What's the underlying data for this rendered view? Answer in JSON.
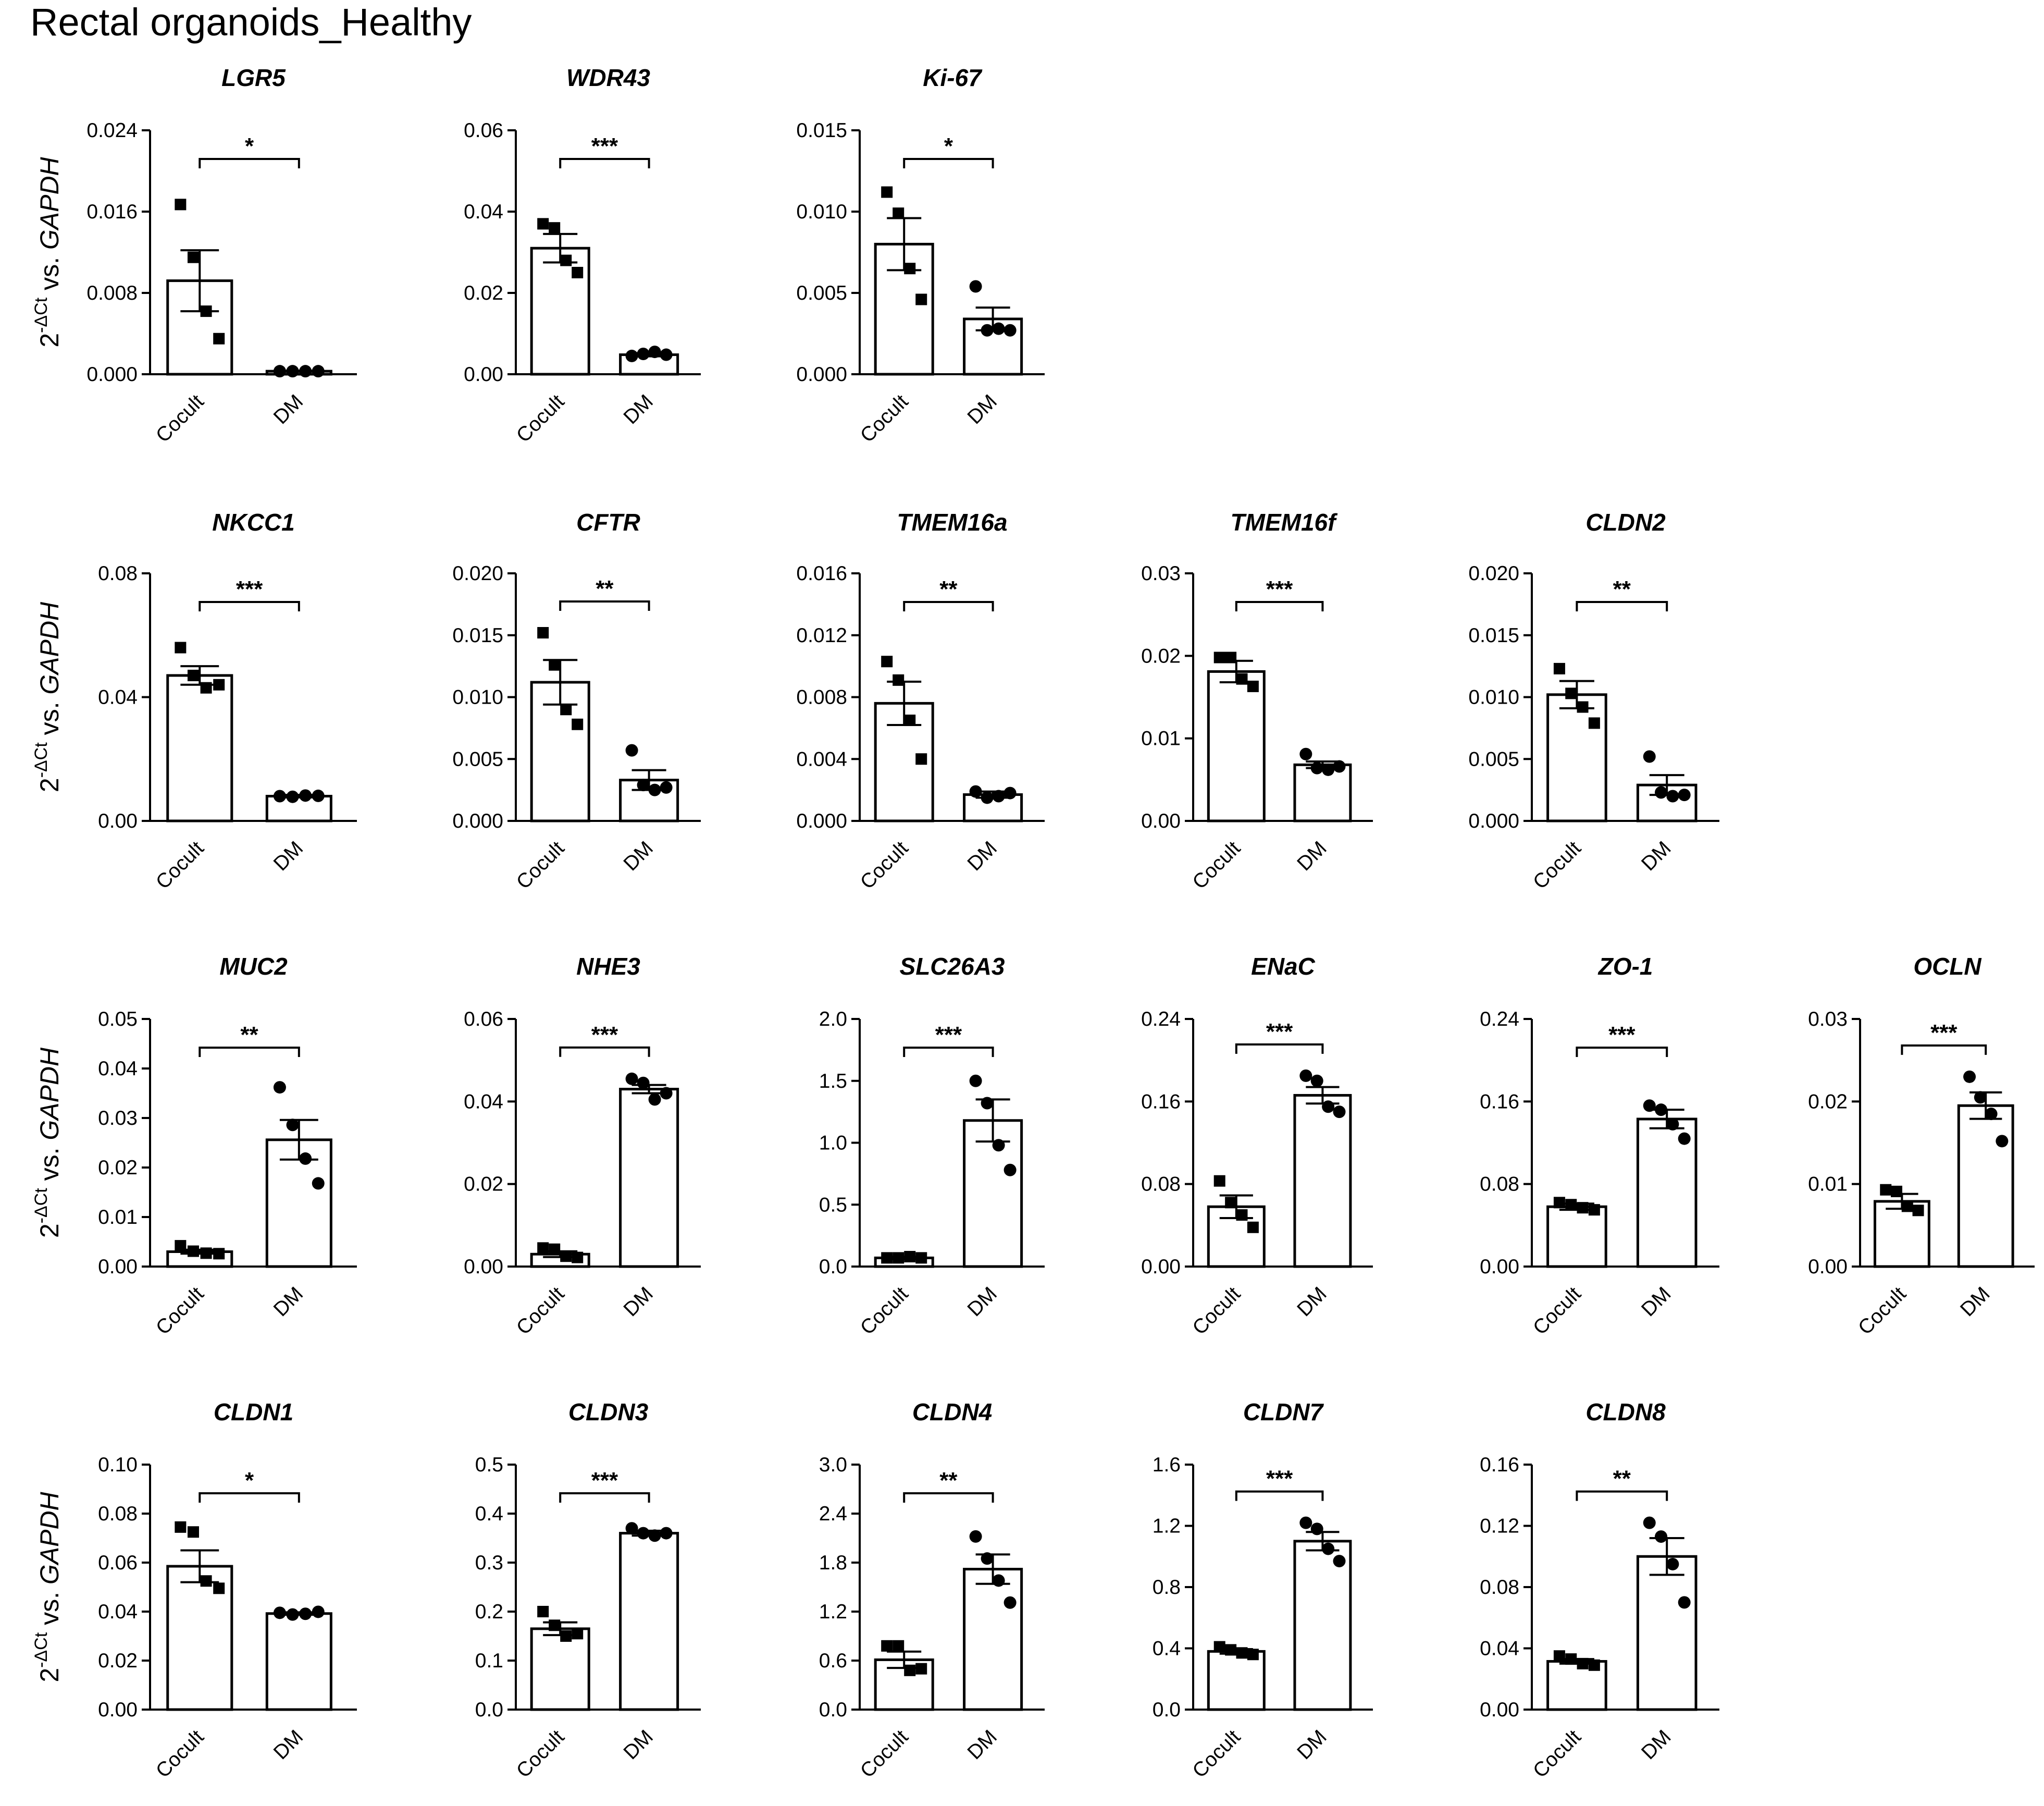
{
  "title": "Rectal organoids_Healthy",
  "y_axis_label": {
    "prefix": "2",
    "superscript": "-ΔCt",
    "middle": " vs. ",
    "gene": "GAPDH"
  },
  "colors": {
    "bar_fill": "#ffffff",
    "stroke": "#000000"
  },
  "chart_data": [
    {
      "type": "bar",
      "title": "LGR5",
      "categories": [
        "Cocult",
        "DM"
      ],
      "yticks": [
        "0.000",
        "0.008",
        "0.016",
        "0.024"
      ],
      "ylim": [
        0,
        0.024
      ],
      "significance": "*",
      "series": [
        {
          "values": [
            0.0092,
            0.0003
          ],
          "sem": [
            0.003,
            5e-05
          ],
          "points": [
            [
              0.0167,
              0.0115,
              0.0062,
              0.0035
            ],
            [
              0.0003,
              0.0003,
              0.0003,
              0.0003
            ]
          ]
        }
      ]
    },
    {
      "type": "bar",
      "title": "WDR43",
      "categories": [
        "Cocult",
        "DM"
      ],
      "yticks": [
        "0.00",
        "0.02",
        "0.04",
        "0.06"
      ],
      "ylim": [
        0,
        0.06
      ],
      "significance": "***",
      "series": [
        {
          "values": [
            0.031,
            0.0048
          ],
          "sem": [
            0.0035,
            0.0004
          ],
          "points": [
            [
              0.037,
              0.036,
              0.028,
              0.025
            ],
            [
              0.0045,
              0.005,
              0.0055,
              0.0048
            ]
          ]
        }
      ]
    },
    {
      "type": "bar",
      "title": "Ki-67",
      "categories": [
        "Cocult",
        "DM"
      ],
      "yticks": [
        "0.000",
        "0.005",
        "0.010",
        "0.015"
      ],
      "ylim": [
        0,
        0.015
      ],
      "significance": "*",
      "series": [
        {
          "values": [
            0.008,
            0.0034
          ],
          "sem": [
            0.0016,
            0.0007
          ],
          "points": [
            [
              0.0112,
              0.0099,
              0.0065,
              0.0046
            ],
            [
              0.0054,
              0.0027,
              0.0028,
              0.0027
            ]
          ]
        }
      ]
    },
    {
      "type": "bar",
      "title": "NKCC1",
      "categories": [
        "Cocult",
        "DM"
      ],
      "yticks": [
        "0.00",
        "0.04",
        "0.08"
      ],
      "ylim": [
        0,
        0.08
      ],
      "significance": "***",
      "series": [
        {
          "values": [
            0.047,
            0.008
          ],
          "sem": [
            0.003,
            0.0004
          ],
          "points": [
            [
              0.056,
              0.047,
              0.043,
              0.044
            ],
            [
              0.008,
              0.0078,
              0.0082,
              0.0081
            ]
          ]
        }
      ]
    },
    {
      "type": "bar",
      "title": "CFTR",
      "categories": [
        "Cocult",
        "DM"
      ],
      "yticks": [
        "0.000",
        "0.005",
        "0.010",
        "0.015",
        "0.020"
      ],
      "ylim": [
        0,
        0.02
      ],
      "significance": "**",
      "series": [
        {
          "values": [
            0.0112,
            0.0033
          ],
          "sem": [
            0.0018,
            0.0008
          ],
          "points": [
            [
              0.0152,
              0.0126,
              0.009,
              0.0078
            ],
            [
              0.0057,
              0.0029,
              0.0025,
              0.0027
            ]
          ]
        }
      ]
    },
    {
      "type": "bar",
      "title": "TMEM16a",
      "categories": [
        "Cocult",
        "DM"
      ],
      "yticks": [
        "0.000",
        "0.004",
        "0.008",
        "0.012",
        "0.016"
      ],
      "ylim": [
        0,
        0.016
      ],
      "significance": "**",
      "series": [
        {
          "values": [
            0.0076,
            0.0017
          ],
          "sem": [
            0.0014,
            0.0002
          ],
          "points": [
            [
              0.0103,
              0.0091,
              0.0065,
              0.004
            ],
            [
              0.0019,
              0.0015,
              0.0016,
              0.0018
            ]
          ]
        }
      ]
    },
    {
      "type": "bar",
      "title": "TMEM16f",
      "categories": [
        "Cocult",
        "DM"
      ],
      "yticks": [
        "0.00",
        "0.01",
        "0.02",
        "0.03"
      ],
      "ylim": [
        0,
        0.03
      ],
      "significance": "***",
      "series": [
        {
          "values": [
            0.0181,
            0.0068
          ],
          "sem": [
            0.0013,
            0.0004
          ],
          "points": [
            [
              0.0198,
              0.0198,
              0.0172,
              0.0163
            ],
            [
              0.0081,
              0.0064,
              0.0062,
              0.0066
            ]
          ]
        }
      ]
    },
    {
      "type": "bar",
      "title": "CLDN2",
      "categories": [
        "Cocult",
        "DM"
      ],
      "yticks": [
        "0.000",
        "0.005",
        "0.010",
        "0.015",
        "0.020"
      ],
      "ylim": [
        0,
        0.02
      ],
      "significance": "**",
      "series": [
        {
          "values": [
            0.0102,
            0.0029
          ],
          "sem": [
            0.0011,
            0.0008
          ],
          "points": [
            [
              0.0123,
              0.0103,
              0.0092,
              0.0079
            ],
            [
              0.0052,
              0.0023,
              0.002,
              0.0021
            ]
          ]
        }
      ]
    },
    {
      "type": "bar",
      "title": "MUC2",
      "categories": [
        "Cocult",
        "DM"
      ],
      "yticks": [
        "0.00",
        "0.01",
        "0.02",
        "0.03",
        "0.04",
        "0.05"
      ],
      "ylim": [
        0,
        0.05
      ],
      "significance": "**",
      "series": [
        {
          "values": [
            0.003,
            0.0256
          ],
          "sem": [
            0.0004,
            0.004
          ],
          "points": [
            [
              0.0042,
              0.0031,
              0.0027,
              0.0026
            ],
            [
              0.0362,
              0.0286,
              0.0218,
              0.0168
            ]
          ]
        }
      ]
    },
    {
      "type": "bar",
      "title": "NHE3",
      "categories": [
        "Cocult",
        "DM"
      ],
      "yticks": [
        "0.00",
        "0.02",
        "0.04",
        "0.06"
      ],
      "ylim": [
        0,
        0.06
      ],
      "significance": "***",
      "series": [
        {
          "values": [
            0.003,
            0.043
          ],
          "sem": [
            0.0007,
            0.001
          ],
          "points": [
            [
              0.0045,
              0.0042,
              0.0025,
              0.0022
            ],
            [
              0.0455,
              0.0445,
              0.0405,
              0.042
            ]
          ]
        }
      ]
    },
    {
      "type": "bar",
      "title": "SLC26A3",
      "categories": [
        "Cocult",
        "DM"
      ],
      "yticks": [
        "0.0",
        "0.5",
        "1.0",
        "1.5",
        "2.0"
      ],
      "ylim": [
        0,
        2.0
      ],
      "significance": "***",
      "series": [
        {
          "values": [
            0.07,
            1.18
          ],
          "sem": [
            0.01,
            0.17
          ],
          "points": [
            [
              0.07,
              0.07,
              0.08,
              0.07
            ],
            [
              1.5,
              1.32,
              0.98,
              0.78
            ]
          ]
        }
      ]
    },
    {
      "type": "bar",
      "title": "ENaC",
      "categories": [
        "Cocult",
        "DM"
      ],
      "yticks": [
        "0.00",
        "0.08",
        "0.16",
        "0.24"
      ],
      "ylim": [
        0,
        0.24
      ],
      "significance": "***",
      "series": [
        {
          "values": [
            0.058,
            0.166
          ],
          "sem": [
            0.011,
            0.008
          ],
          "points": [
            [
              0.083,
              0.062,
              0.05,
              0.038
            ],
            [
              0.185,
              0.18,
              0.155,
              0.15
            ]
          ]
        }
      ]
    },
    {
      "type": "bar",
      "title": "ZO-1",
      "categories": [
        "Cocult",
        "DM"
      ],
      "yticks": [
        "0.00",
        "0.08",
        "0.16",
        "0.24"
      ],
      "ylim": [
        0,
        0.24
      ],
      "significance": "***",
      "series": [
        {
          "values": [
            0.058,
            0.143
          ],
          "sem": [
            0.003,
            0.009
          ],
          "points": [
            [
              0.062,
              0.06,
              0.057,
              0.055
            ],
            [
              0.156,
              0.152,
              0.138,
              0.124
            ]
          ]
        }
      ]
    },
    {
      "type": "bar",
      "title": "OCLN",
      "categories": [
        "Cocult",
        "DM"
      ],
      "yticks": [
        "0.00",
        "0.01",
        "0.02",
        "0.03"
      ],
      "ylim": [
        0,
        0.03
      ],
      "significance": "***",
      "series": [
        {
          "values": [
            0.0079,
            0.0195
          ],
          "sem": [
            0.0009,
            0.0016
          ],
          "points": [
            [
              0.0093,
              0.0091,
              0.0073,
              0.0068
            ],
            [
              0.023,
              0.0205,
              0.0185,
              0.0152
            ]
          ]
        }
      ]
    },
    {
      "type": "bar",
      "title": "CLDN1",
      "categories": [
        "Cocult",
        "DM"
      ],
      "yticks": [
        "0.00",
        "0.02",
        "0.04",
        "0.06",
        "0.08",
        "0.10"
      ],
      "ylim": [
        0,
        0.1
      ],
      "significance": "*",
      "series": [
        {
          "values": [
            0.0585,
            0.0392
          ],
          "sem": [
            0.0065,
            0.0005
          ],
          "points": [
            [
              0.0745,
              0.0725,
              0.0525,
              0.0495
            ],
            [
              0.0395,
              0.0388,
              0.0391,
              0.0399
            ]
          ]
        }
      ]
    },
    {
      "type": "bar",
      "title": "CLDN3",
      "categories": [
        "Cocult",
        "DM"
      ],
      "yticks": [
        "0.0",
        "0.1",
        "0.2",
        "0.3",
        "0.4",
        "0.5"
      ],
      "ylim": [
        0,
        0.5
      ],
      "significance": "***",
      "series": [
        {
          "values": [
            0.165,
            0.36
          ],
          "sem": [
            0.013,
            0.005
          ],
          "points": [
            [
              0.2,
              0.172,
              0.15,
              0.155
            ],
            [
              0.37,
              0.36,
              0.355,
              0.36
            ]
          ]
        }
      ]
    },
    {
      "type": "bar",
      "title": "CLDN4",
      "categories": [
        "Cocult",
        "DM"
      ],
      "yticks": [
        "0.0",
        "0.6",
        "1.2",
        "1.8",
        "2.4",
        "3.0"
      ],
      "ylim": [
        0,
        3.0
      ],
      "significance": "**",
      "series": [
        {
          "values": [
            0.61,
            1.72
          ],
          "sem": [
            0.1,
            0.18
          ],
          "points": [
            [
              0.78,
              0.78,
              0.48,
              0.5
            ],
            [
              2.12,
              1.85,
              1.58,
              1.31
            ]
          ]
        }
      ]
    },
    {
      "type": "bar",
      "title": "CLDN7",
      "categories": [
        "Cocult",
        "DM"
      ],
      "yticks": [
        "0.0",
        "0.4",
        "0.8",
        "1.2",
        "1.6"
      ],
      "ylim": [
        0,
        1.6
      ],
      "significance": "***",
      "series": [
        {
          "values": [
            0.38,
            1.1
          ],
          "sem": [
            0.015,
            0.06
          ],
          "points": [
            [
              0.41,
              0.39,
              0.37,
              0.36
            ],
            [
              1.22,
              1.18,
              1.05,
              0.97
            ]
          ]
        }
      ]
    },
    {
      "type": "bar",
      "title": "CLDN8",
      "categories": [
        "Cocult",
        "DM"
      ],
      "yticks": [
        "0.00",
        "0.04",
        "0.08",
        "0.12",
        "0.16"
      ],
      "ylim": [
        0,
        0.16
      ],
      "significance": "**",
      "series": [
        {
          "values": [
            0.0315,
            0.1
          ],
          "sem": [
            0.0015,
            0.012
          ],
          "points": [
            [
              0.035,
              0.033,
              0.03,
              0.029
            ],
            [
              0.122,
              0.113,
              0.095,
              0.07
            ]
          ]
        }
      ]
    }
  ]
}
